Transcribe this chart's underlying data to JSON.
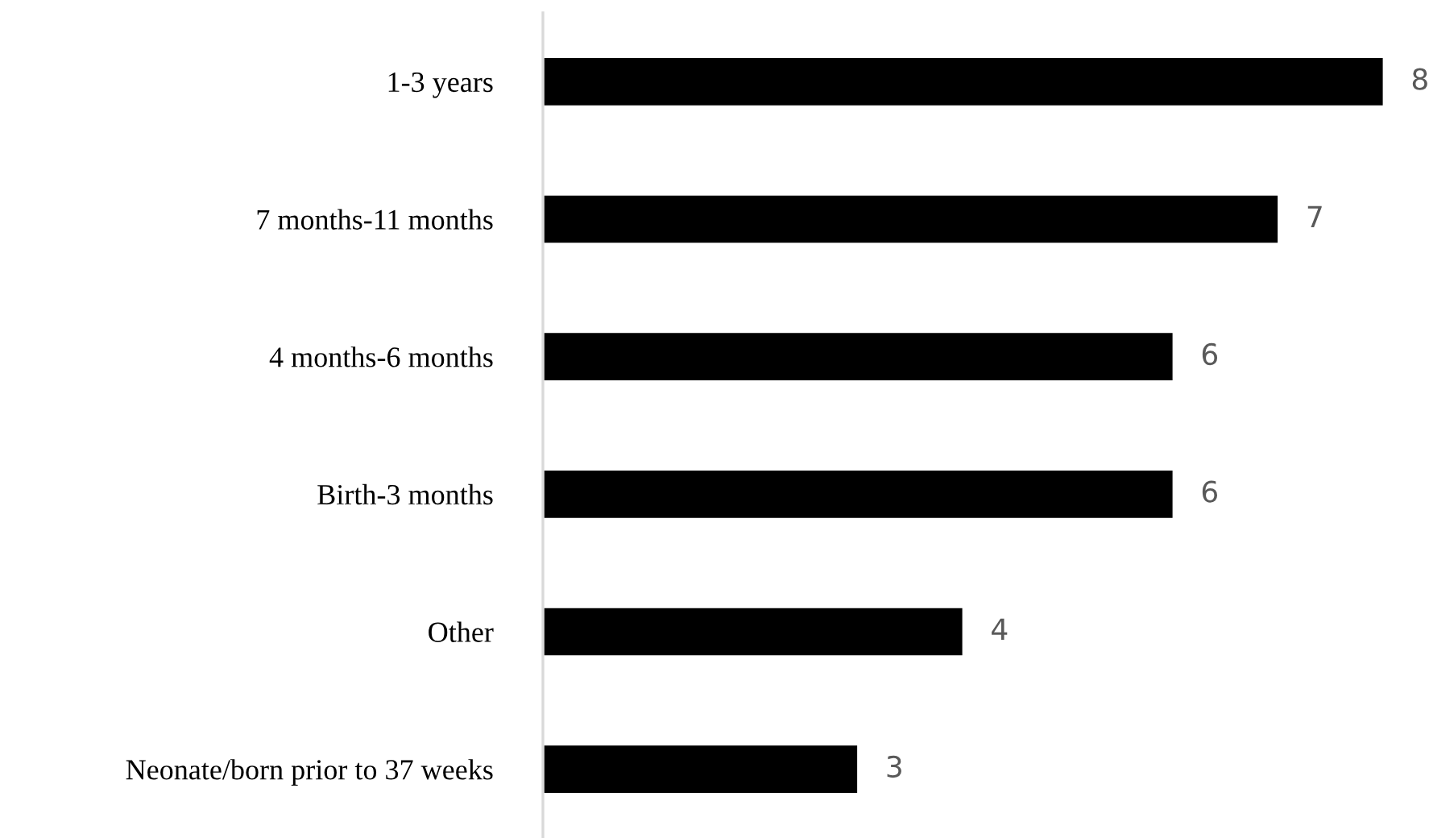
{
  "chart_data": {
    "type": "bar",
    "orientation": "horizontal",
    "categories": [
      "1-3 years",
      "7 months-11 months",
      "4 months-6 months",
      "Birth-3 months",
      "Other",
      "Neonate/born prior to 37 weeks"
    ],
    "values": [
      8,
      7,
      6,
      6,
      4,
      3
    ],
    "color": "#000000",
    "xlim": [
      0,
      8
    ],
    "data_labels": true,
    "tick_labels": "y",
    "grid": false,
    "legend": false
  }
}
